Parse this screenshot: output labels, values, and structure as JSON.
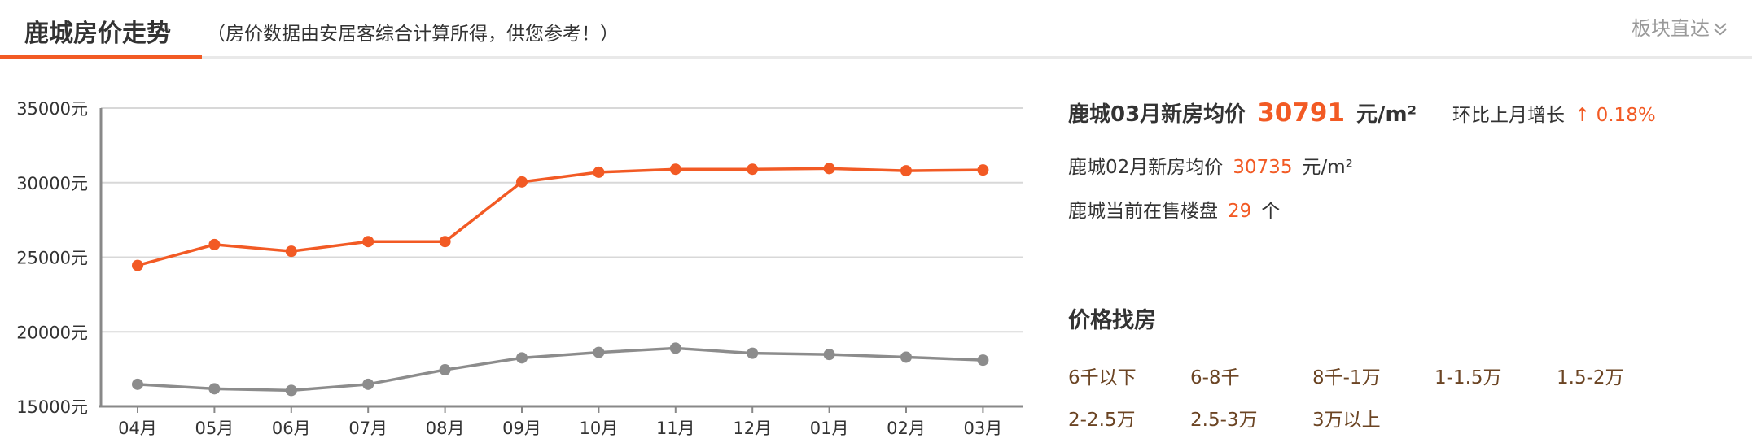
{
  "header": {
    "title": "鹿城房价走势",
    "subtitle": "（房价数据由安居客综合计算所得，供您参考！）",
    "quick_link": "板块直达"
  },
  "summary": {
    "current_label": "鹿城03月新房均价",
    "current_price": "30791",
    "current_unit": "元/m²",
    "change_label": "环比上月增长",
    "change_value": "↑ 0.18%",
    "prev_label": "鹿城02月新房均价",
    "prev_price": "30735",
    "prev_unit": "元/m²",
    "onsale_label": "鹿城当前在售楼盘",
    "onsale_count": "29",
    "onsale_unit": "个"
  },
  "price_search": {
    "title": "价格找房",
    "links": [
      "6千以下",
      "6-8千",
      "8千-1万",
      "1-1.5万",
      "1.5-2万",
      "2-2.5万",
      "2.5-3万",
      "3万以上"
    ]
  },
  "colors": {
    "accent": "#f25a24",
    "secondary_series": "#8c8c8c",
    "link": "#6b4423"
  },
  "chart_data": {
    "type": "line",
    "categories": [
      "04月",
      "05月",
      "06月",
      "07月",
      "08月",
      "09月",
      "10月",
      "11月",
      "12月",
      "01月",
      "02月",
      "03月"
    ],
    "series": [
      {
        "color": "#f25a24",
        "values": [
          24450,
          25850,
          25400,
          26050,
          26050,
          30050,
          30700,
          30900,
          30900,
          30950,
          30800,
          30850
        ]
      },
      {
        "color": "#8c8c8c",
        "values": [
          16480,
          16180,
          16070,
          16480,
          17450,
          18250,
          18620,
          18900,
          18560,
          18480,
          18300,
          18100
        ]
      }
    ],
    "yticks": [
      "15000元",
      "20000元",
      "25000元",
      "30000元",
      "35000元"
    ],
    "ylim": [
      15000,
      35000
    ],
    "grid": true,
    "xlabel": "",
    "ylabel": ""
  }
}
